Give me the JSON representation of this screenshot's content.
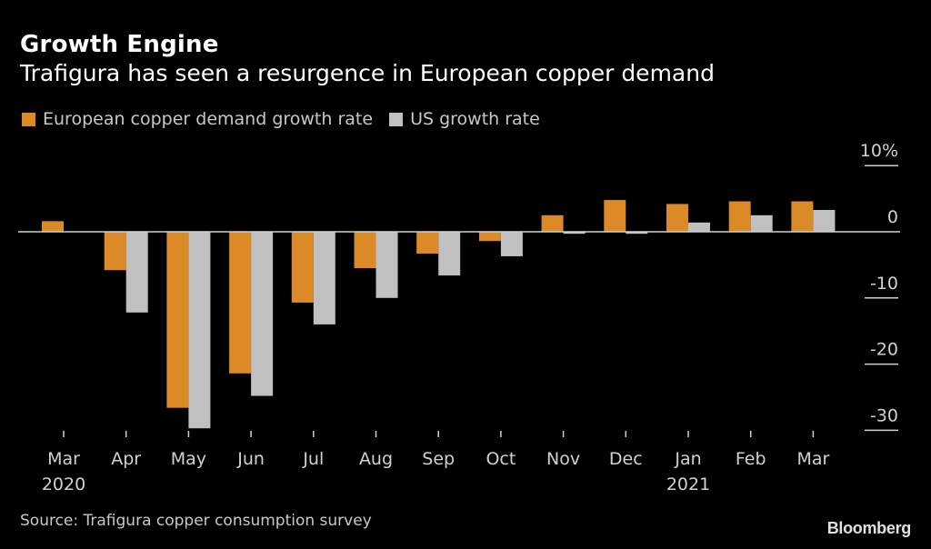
{
  "header": {
    "title": "Growth Engine",
    "subtitle": "Trafigura has seen a resurgence in European copper demand"
  },
  "footer": {
    "source": "Source: Trafigura copper consumption survey",
    "brand": "Bloomberg"
  },
  "colors": {
    "europe": "#dc8a28",
    "us": "#c0c0c0",
    "background": "#000000",
    "axis": "#d0d0d0"
  },
  "chart_data": {
    "type": "bar",
    "title": "Growth Engine",
    "subtitle": "Trafigura has seen a resurgence in European copper demand",
    "xlabel": "",
    "ylabel": "",
    "categories": [
      "Mar",
      "Apr",
      "May",
      "Jun",
      "Jul",
      "Aug",
      "Sep",
      "Oct",
      "Nov",
      "Dec",
      "Jan",
      "Feb",
      "Mar"
    ],
    "category_sublabels": [
      "2020",
      "",
      "",
      "",
      "",
      "",
      "",
      "",
      "",
      "",
      "2021",
      "",
      ""
    ],
    "series": [
      {
        "name": "European copper demand growth rate",
        "color": "#dc8a28",
        "values": [
          1.6,
          -5.8,
          -26.6,
          -21.4,
          -10.7,
          -5.5,
          -3.3,
          -1.4,
          2.5,
          4.8,
          4.2,
          4.6,
          4.6
        ]
      },
      {
        "name": "US growth rate",
        "color": "#c0c0c0",
        "values": [
          0,
          -12.2,
          -29.7,
          -24.8,
          -14.0,
          -10.0,
          -6.6,
          -3.7,
          -0.3,
          -0.3,
          1.4,
          2.5,
          3.3
        ]
      }
    ],
    "yticks": [
      10,
      0,
      -10,
      -20,
      -30
    ],
    "ytick_labels": [
      "10%",
      "0",
      "-10",
      "-20",
      "-30"
    ],
    "ylim": [
      -30,
      10
    ],
    "y_axis_side": "right",
    "grid": false,
    "legend_position": "top-left"
  }
}
